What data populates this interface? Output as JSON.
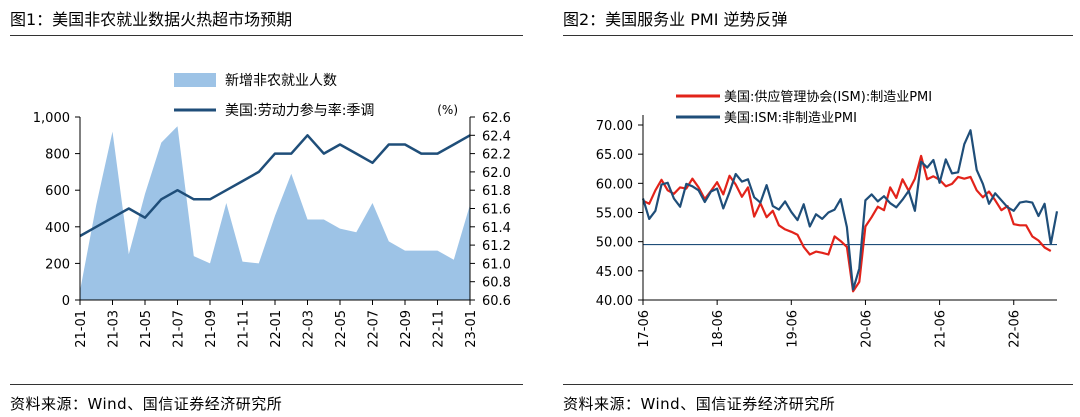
{
  "left_panel": {
    "title": "图1：美国非农就业数据火热超市场预期",
    "source": "资料来源：Wind、国信证券经济研究所"
  },
  "right_panel": {
    "title": "图2：美国服务业 PMI 逆势反弹",
    "source": "资料来源：Wind、国信证券经济研究所"
  },
  "chart_data": [
    {
      "type": "area",
      "title": "图1：美国非农就业数据火热超市场预期",
      "categories": [
        "21-01",
        "21-02",
        "21-03",
        "21-04",
        "21-05",
        "21-06",
        "21-07",
        "21-08",
        "21-09",
        "21-10",
        "21-11",
        "21-12",
        "22-01",
        "22-02",
        "22-03",
        "22-04",
        "22-05",
        "22-06",
        "22-07",
        "22-08",
        "22-09",
        "22-10",
        "22-11",
        "22-12",
        "23-01"
      ],
      "x_tick_labels": [
        "21-01",
        "21-03",
        "21-05",
        "21-07",
        "21-09",
        "21-11",
        "22-01",
        "22-03",
        "22-05",
        "22-07",
        "22-09",
        "22-11",
        "23-01"
      ],
      "series": [
        {
          "name": "新增非农就业人数",
          "render": "area",
          "axis": "left",
          "color": "#9dc3e6",
          "values": [
            50,
            520,
            920,
            250,
            580,
            860,
            950,
            240,
            200,
            530,
            210,
            200,
            460,
            690,
            440,
            440,
            390,
            370,
            530,
            320,
            270,
            270,
            270,
            220,
            520
          ]
        },
        {
          "name": "美国:劳动力参与率:季调",
          "render": "line",
          "axis": "right",
          "color": "#1f4e79",
          "values": [
            61.3,
            61.4,
            61.5,
            61.6,
            61.5,
            61.7,
            61.8,
            61.7,
            61.7,
            61.8,
            61.9,
            62.0,
            62.2,
            62.2,
            62.4,
            62.2,
            62.3,
            62.2,
            62.1,
            62.3,
            62.3,
            62.2,
            62.2,
            62.3,
            62.4
          ]
        }
      ],
      "y_left": {
        "ylim": [
          0,
          1000
        ],
        "ticks": [
          "0",
          "200",
          "400",
          "600",
          "800",
          "1,000"
        ]
      },
      "y_right": {
        "ylim": [
          60.6,
          62.6
        ],
        "unit": "(%)",
        "ticks": [
          "60.6",
          "60.8",
          "61.0",
          "61.2",
          "61.4",
          "61.6",
          "61.8",
          "62.0",
          "62.2",
          "62.4",
          "62.6"
        ]
      },
      "legend_position": "top-center",
      "grid": false
    },
    {
      "type": "line",
      "title": "图2：美国服务业 PMI 逆势反弹",
      "x_tick_labels": [
        "17-06",
        "18-06",
        "19-06",
        "20-06",
        "21-06",
        "22-06"
      ],
      "x_range": [
        "2017-06",
        "2022-12"
      ],
      "ylim": [
        40,
        70
      ],
      "y_ticks": [
        "40.00",
        "45.00",
        "50.00",
        "55.00",
        "60.00",
        "65.00",
        "70.00"
      ],
      "reference_line": 49.5,
      "series": [
        {
          "name": "美国:供应管理协会(ISM):制造业PMI",
          "color": "#e2231a",
          "x": [
            "2017-06",
            "2017-07",
            "2017-08",
            "2017-09",
            "2017-10",
            "2017-11",
            "2017-12",
            "2018-01",
            "2018-02",
            "2018-03",
            "2018-04",
            "2018-05",
            "2018-06",
            "2018-07",
            "2018-08",
            "2018-09",
            "2018-10",
            "2018-11",
            "2018-12",
            "2019-01",
            "2019-02",
            "2019-03",
            "2019-04",
            "2019-05",
            "2019-06",
            "2019-07",
            "2019-08",
            "2019-09",
            "2019-10",
            "2019-11",
            "2019-12",
            "2020-01",
            "2020-02",
            "2020-03",
            "2020-04",
            "2020-05",
            "2020-06",
            "2020-07",
            "2020-08",
            "2020-09",
            "2020-10",
            "2020-11",
            "2020-12",
            "2021-01",
            "2021-02",
            "2021-03",
            "2021-04",
            "2021-05",
            "2021-06",
            "2021-07",
            "2021-08",
            "2021-09",
            "2021-10",
            "2021-11",
            "2021-12",
            "2022-01",
            "2022-02",
            "2022-03",
            "2022-04",
            "2022-05",
            "2022-06",
            "2022-07",
            "2022-08",
            "2022-09",
            "2022-10",
            "2022-11",
            "2022-12"
          ],
          "values": [
            57.0,
            56.5,
            58.8,
            60.6,
            58.8,
            58.2,
            59.3,
            59.1,
            60.8,
            59.3,
            57.3,
            58.7,
            60.2,
            58.1,
            61.3,
            59.8,
            57.7,
            59.3,
            54.3,
            56.6,
            54.2,
            55.3,
            52.8,
            52.1,
            51.7,
            51.2,
            49.1,
            47.8,
            48.3,
            48.1,
            47.8,
            50.9,
            50.1,
            49.1,
            41.5,
            43.1,
            52.6,
            54.2,
            56.0,
            55.4,
            59.3,
            57.5,
            60.7,
            58.7,
            60.8,
            64.7,
            60.7,
            61.2,
            60.6,
            59.5,
            59.9,
            61.1,
            60.8,
            61.1,
            58.8,
            57.6,
            58.6,
            57.1,
            55.4,
            56.1,
            53.0,
            52.8,
            52.8,
            50.9,
            50.2,
            49.0,
            48.4
          ]
        },
        {
          "name": "美国:ISM:非制造业PMI",
          "color": "#1f4e79",
          "x": [
            "2017-06",
            "2017-07",
            "2017-08",
            "2017-09",
            "2017-10",
            "2017-11",
            "2017-12",
            "2018-01",
            "2018-02",
            "2018-03",
            "2018-04",
            "2018-05",
            "2018-06",
            "2018-07",
            "2018-08",
            "2018-09",
            "2018-10",
            "2018-11",
            "2018-12",
            "2019-01",
            "2019-02",
            "2019-03",
            "2019-04",
            "2019-05",
            "2019-06",
            "2019-07",
            "2019-08",
            "2019-09",
            "2019-10",
            "2019-11",
            "2019-12",
            "2020-01",
            "2020-02",
            "2020-03",
            "2020-04",
            "2020-05",
            "2020-06",
            "2020-07",
            "2020-08",
            "2020-09",
            "2020-10",
            "2020-11",
            "2020-12",
            "2021-01",
            "2021-02",
            "2021-03",
            "2021-04",
            "2021-05",
            "2021-06",
            "2021-07",
            "2021-08",
            "2021-09",
            "2021-10",
            "2021-11",
            "2021-12",
            "2022-01",
            "2022-02",
            "2022-03",
            "2022-04",
            "2022-05",
            "2022-06",
            "2022-07",
            "2022-08",
            "2022-09",
            "2022-10",
            "2022-11",
            "2022-12",
            "2023-01"
          ],
          "values": [
            57.4,
            53.9,
            55.3,
            59.8,
            60.1,
            57.4,
            56.0,
            59.9,
            59.5,
            58.8,
            56.8,
            58.6,
            59.1,
            55.7,
            58.5,
            61.6,
            60.3,
            60.7,
            57.6,
            56.7,
            59.7,
            56.1,
            55.5,
            56.9,
            55.1,
            53.7,
            56.4,
            52.6,
            54.7,
            53.9,
            55.0,
            55.5,
            57.3,
            52.5,
            41.8,
            45.4,
            57.1,
            58.1,
            56.9,
            57.8,
            56.6,
            55.9,
            57.2,
            58.7,
            55.3,
            63.7,
            62.7,
            64.0,
            60.1,
            64.1,
            61.7,
            61.9,
            66.7,
            69.1,
            62.3,
            59.9,
            56.5,
            58.3,
            57.1,
            55.9,
            55.3,
            56.7,
            56.9,
            56.7,
            54.4,
            56.5,
            49.6,
            55.2
          ]
        }
      ],
      "legend_position": "top-left",
      "grid": false
    }
  ]
}
